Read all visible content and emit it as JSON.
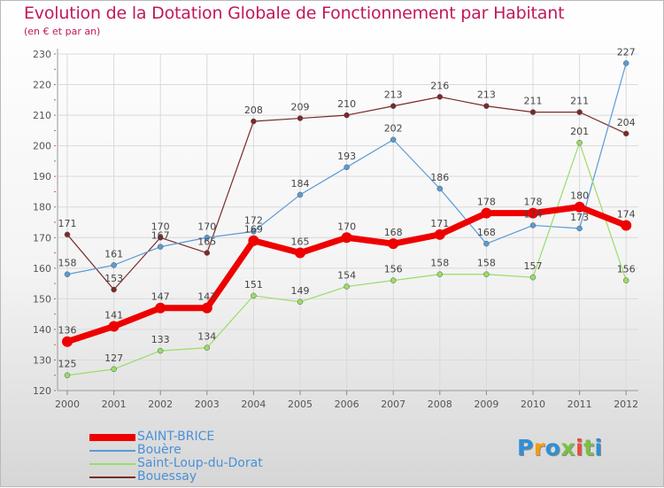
{
  "title": "Evolution de la Dotation Globale de Fonctionnement par Habitant",
  "subtitle": "(en € et par an)",
  "brand": {
    "text": "Proxiti",
    "letters": [
      "P",
      "r",
      "o",
      "x",
      "i",
      "t",
      "i"
    ],
    "colors": [
      "#2e8fd6",
      "#f39c12",
      "#2e8fd6",
      "#7ac143",
      "#e74c3c",
      "#7ac143",
      "#2e8fd6"
    ]
  },
  "chart_data": {
    "type": "line",
    "title": "Evolution de la Dotation Globale de Fonctionnement par Habitant",
    "ylabel": "(en € et par an)",
    "xlabel": "",
    "x": [
      "2000",
      "2001",
      "2002",
      "2003",
      "2004",
      "2005",
      "2006",
      "2007",
      "2008",
      "2009",
      "2010",
      "2011",
      "2012"
    ],
    "ylim": [
      120,
      230
    ],
    "yticks": [
      120,
      130,
      140,
      150,
      160,
      170,
      180,
      190,
      200,
      210,
      220,
      230
    ],
    "grid": true,
    "series": [
      {
        "name": "SAINT-BRICE",
        "color": "#ee0000",
        "values": [
          136,
          141,
          147,
          147,
          169,
          165,
          170,
          168,
          171,
          178,
          178,
          180,
          174
        ],
        "labels": [
          "136",
          "141",
          "147",
          "147",
          "169",
          "165",
          "170",
          "168",
          "171",
          "178",
          "178",
          "180",
          "174"
        ]
      },
      {
        "name": "Bouère",
        "color": "#5b9bd5",
        "values": [
          158,
          161,
          167,
          170,
          172,
          184,
          193,
          202,
          186,
          168,
          174,
          173,
          227
        ],
        "labels": [
          "158",
          "161",
          "167",
          "170",
          "172",
          "184",
          "193",
          "202",
          "186",
          "168",
          "174",
          "173",
          "227"
        ]
      },
      {
        "name": "Saint-Loup-du-Dorat",
        "color": "#99dd66",
        "values": [
          125,
          127,
          133,
          134,
          151,
          149,
          154,
          156,
          158,
          158,
          157,
          201,
          156
        ],
        "labels": [
          "125",
          "127",
          "133",
          "134",
          "151",
          "149",
          "154",
          "156",
          "158",
          "158",
          "157",
          "201",
          "156"
        ]
      },
      {
        "name": "Bouessay",
        "color": "#7a2a2a",
        "values": [
          171,
          153,
          170,
          165,
          208,
          209,
          210,
          213,
          216,
          213,
          211,
          211,
          204
        ],
        "labels": [
          "171",
          "153",
          "170",
          "165",
          "208",
          "209",
          "210",
          "213",
          "216",
          "213",
          "211",
          "211",
          "204"
        ]
      }
    ],
    "legend_position": "bottom-left"
  }
}
